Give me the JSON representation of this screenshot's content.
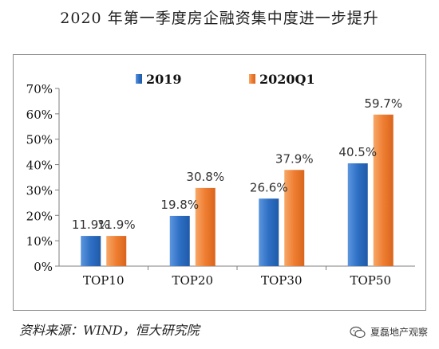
{
  "title": "2020 年第一季度房企融资集中度进一步提升",
  "source": "资料来源：WIND，恒大研究院",
  "watermark": "夏磊地产观察",
  "colors": {
    "series_2019": "#2e6fc4",
    "series_2020Q1": "#ee7d31"
  },
  "chart_data": {
    "type": "bar",
    "categories": [
      "TOP10",
      "TOP20",
      "TOP30",
      "TOP50"
    ],
    "series": [
      {
        "name": "2019",
        "values": [
          11.9,
          19.8,
          26.6,
          40.5
        ],
        "labels": [
          "11.9%",
          "19.8%",
          "26.6%",
          "40.5%"
        ]
      },
      {
        "name": "2020Q1",
        "values": [
          11.9,
          30.8,
          37.9,
          59.7
        ],
        "labels": [
          "11.9%",
          "30.8%",
          "37.9%",
          "59.7%"
        ]
      }
    ],
    "ylim": [
      0,
      70
    ],
    "yticks": [
      "0%",
      "10%",
      "20%",
      "30%",
      "40%",
      "50%",
      "60%",
      "70%"
    ],
    "legend": "top-center",
    "grid": false
  }
}
